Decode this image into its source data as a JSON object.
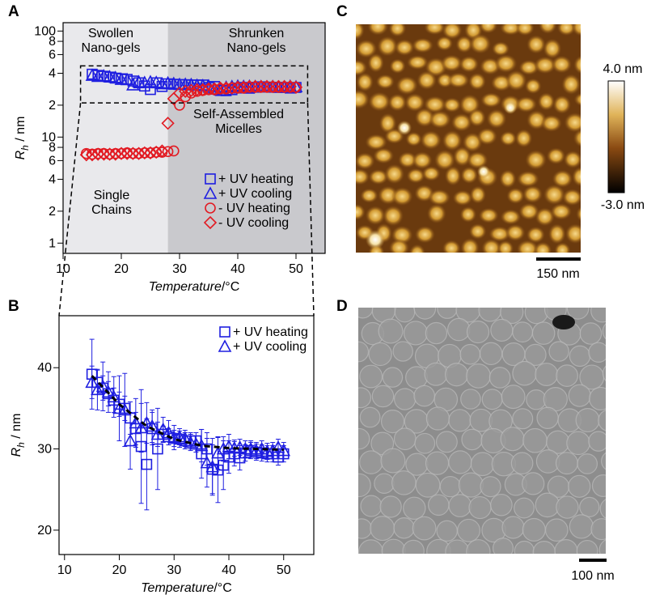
{
  "chart_data": [
    {
      "type": "scatter",
      "panel": "A",
      "log_y": true,
      "xlabel": {
        "italic": "Temperature",
        "rest": "/°C"
      },
      "ylabel": {
        "main": "R",
        "sub": "h",
        "rest": " / nm"
      },
      "xlim": [
        10,
        55
      ],
      "xticks": [
        10,
        20,
        30,
        40,
        50
      ],
      "ylim": [
        0.8,
        120
      ],
      "yticks": [
        1,
        2,
        4,
        6,
        8,
        10,
        {
          "value": 20,
          "label": "2"
        },
        {
          "value": 40,
          "label": "4"
        },
        {
          "value": 60,
          "label": "6"
        },
        {
          "value": 80,
          "label": "8"
        },
        100
      ],
      "shaded_regions": [
        {
          "xlim": [
            10,
            28
          ],
          "color": "#e9e9ec"
        },
        {
          "xlim": [
            28,
            55
          ],
          "color": "#c9c9cd"
        }
      ],
      "zoom_box": {
        "xlim": [
          13,
          52
        ],
        "ylim": [
          21,
          47
        ]
      },
      "annotations": [
        {
          "text": [
            "Swollen",
            "Nano-gels"
          ],
          "color": "#1f1fe0"
        },
        {
          "text": [
            "Shrunken",
            "Nano-gels"
          ],
          "color": "#1f1fe0"
        },
        {
          "text": [
            "Self-Assembled",
            "Micelles"
          ],
          "color": "#e21a22"
        },
        {
          "text": [
            "Single",
            "Chains"
          ],
          "color": "#e21a22"
        }
      ],
      "legend": "lower right",
      "series": [
        {
          "name": "+ UV heating",
          "color": "#1f1fe0",
          "marker": "square",
          "x": [
            15,
            16,
            17,
            18,
            19,
            20,
            21,
            22,
            23,
            24,
            25,
            26,
            27,
            28,
            29,
            30,
            31,
            32,
            33,
            34,
            35,
            36,
            37,
            38,
            39,
            40,
            41,
            42,
            43,
            44,
            45,
            46,
            47,
            48,
            49,
            50
          ],
          "values": [
            39.2,
            38.2,
            37.5,
            36.8,
            36,
            35.5,
            35,
            33.8,
            32.5,
            30.3,
            28.1,
            32.5,
            30,
            31.8,
            31.5,
            31.3,
            31.2,
            31,
            31,
            31,
            29.4,
            30,
            27.5,
            27.4,
            28,
            29,
            29.4,
            28.9,
            29.5,
            29.8,
            29.6,
            29.5,
            29.4,
            29.4,
            29,
            29.4
          ]
        },
        {
          "name": "+ UV cooling",
          "color": "#1f1fe0",
          "marker": "triangle",
          "x": [
            15,
            16,
            17,
            18,
            19,
            20,
            21,
            22,
            23,
            24,
            25,
            26,
            27,
            28,
            29,
            30,
            31,
            32,
            33,
            34,
            35,
            36,
            37,
            38,
            39,
            40,
            41,
            42,
            43,
            44,
            45,
            46,
            47,
            48,
            49,
            50
          ],
          "values": [
            38.2,
            37.3,
            37.7,
            37,
            36.4,
            35,
            34.8,
            31,
            33.2,
            32.6,
            33.2,
            32.8,
            31.8,
            32.4,
            32,
            31.4,
            31.5,
            31.3,
            30.8,
            30.6,
            30.4,
            28.3,
            27.8,
            29.5,
            30,
            30.3,
            30.1,
            30.2,
            30,
            30,
            29.8,
            30,
            29.7,
            29.8,
            30.2,
            29.8
          ]
        },
        {
          "name": "- UV heating",
          "color": "#e21a22",
          "marker": "circle",
          "x": [
            14,
            15,
            16,
            17,
            18,
            19,
            20,
            21,
            22,
            23,
            24,
            25,
            26,
            27,
            28,
            29,
            30,
            31,
            32,
            33,
            34,
            35,
            36,
            37,
            38,
            39,
            40,
            41,
            42,
            43,
            44,
            45,
            46,
            47,
            48,
            49,
            50
          ],
          "values": [
            7.0,
            6.9,
            7.0,
            7.0,
            6.9,
            7.0,
            7.0,
            7.1,
            7.0,
            7.0,
            7.1,
            7.1,
            7.2,
            7.2,
            7.3,
            7.4,
            20,
            24,
            26,
            27,
            27.5,
            28,
            28,
            28.5,
            28.5,
            29,
            29,
            29,
            29.5,
            29.5,
            29.5,
            29.5,
            29.5,
            29.5,
            29.5,
            29.5,
            29.5
          ]
        },
        {
          "name": "- UV cooling",
          "color": "#e21a22",
          "marker": "diamond",
          "x": [
            14,
            15,
            16,
            17,
            18,
            19,
            20,
            21,
            22,
            23,
            24,
            25,
            26,
            27,
            28,
            29,
            30,
            31,
            32,
            33,
            34,
            35,
            36,
            37,
            38,
            39,
            40,
            41,
            42,
            43,
            44,
            45,
            46,
            47,
            48,
            49,
            50
          ],
          "values": [
            6.8,
            6.8,
            6.9,
            6.9,
            6.9,
            6.9,
            7.0,
            7.0,
            7.0,
            7.0,
            7.1,
            7.1,
            7.2,
            7.4,
            13.5,
            23,
            26,
            27,
            27.5,
            28,
            28,
            28.5,
            28.5,
            29,
            29,
            29,
            29.5,
            29.5,
            30,
            30,
            30,
            30,
            30,
            30,
            30,
            30,
            29.5
          ]
        }
      ]
    },
    {
      "type": "scatter",
      "panel": "B",
      "log_y": false,
      "xlabel": {
        "italic": "Temperature",
        "rest": "/°C"
      },
      "ylabel": {
        "main": "R",
        "sub": "h",
        "rest": " / nm"
      },
      "xlim": [
        9,
        55.5
      ],
      "xticks": [
        10,
        20,
        30,
        40,
        50
      ],
      "ylim": [
        17,
        46.4
      ],
      "yticks": [
        20,
        30,
        40
      ],
      "legend": "upper right",
      "fit": {
        "color": "#000000",
        "x": [
          15,
          20,
          25,
          30,
          35,
          40,
          45,
          50
        ],
        "values": [
          39,
          35.5,
          32.8,
          31.2,
          30.4,
          30.1,
          30,
          29.9
        ]
      },
      "series": [
        {
          "name": "+ UV heating",
          "color": "#1f1fe0",
          "marker": "square",
          "x": [
            15,
            16,
            17,
            18,
            19,
            20,
            21,
            22,
            23,
            24,
            25,
            26,
            27,
            28,
            29,
            30,
            31,
            32,
            33,
            34,
            35,
            36,
            37,
            38,
            39,
            40,
            41,
            42,
            43,
            44,
            45,
            46,
            47,
            48,
            49,
            50
          ],
          "values": [
            39.2,
            38.2,
            37.5,
            36.8,
            36,
            35.5,
            35,
            33.8,
            32.5,
            30.3,
            28.1,
            32.5,
            30,
            31.8,
            31.5,
            31.3,
            31.2,
            31,
            31,
            31,
            29.4,
            30,
            27.5,
            27.4,
            28,
            29,
            29.4,
            28.9,
            29.5,
            29.8,
            29.6,
            29.5,
            29.4,
            29.4,
            29,
            29.4
          ],
          "errors": [
            4.3,
            1.5,
            1.5,
            1.5,
            1.5,
            1.5,
            1.5,
            2,
            2,
            7,
            5.6,
            2,
            5,
            1,
            1,
            1,
            1,
            1,
            1,
            1,
            3,
            2,
            3,
            4,
            3,
            2,
            1.5,
            1.5,
            1,
            1,
            1,
            1,
            1,
            1,
            1,
            1
          ]
        },
        {
          "name": "+ UV cooling",
          "color": "#1f1fe0",
          "marker": "triangle",
          "x": [
            15,
            16,
            17,
            18,
            19,
            20,
            21,
            22,
            23,
            24,
            25,
            26,
            27,
            28,
            29,
            30,
            31,
            32,
            33,
            34,
            35,
            36,
            37,
            38,
            39,
            40,
            41,
            42,
            43,
            44,
            45,
            46,
            47,
            48,
            49,
            50
          ],
          "values": [
            38.2,
            37.3,
            37.7,
            37,
            36.4,
            35,
            34.8,
            31,
            33.2,
            32.6,
            33.2,
            32.8,
            31.8,
            32.4,
            32,
            31.4,
            31.5,
            31.3,
            30.8,
            30.6,
            30.4,
            28.3,
            27.8,
            29.5,
            30,
            30.3,
            30.1,
            30.2,
            30,
            30,
            29.8,
            30,
            29.7,
            29.8,
            30.2,
            29.8
          ],
          "errors": [
            2,
            2.5,
            3,
            2.5,
            2.5,
            4,
            4.5,
            3.5,
            3,
            3,
            2.5,
            2,
            1.5,
            1.5,
            1.5,
            1.5,
            1,
            1,
            1,
            1,
            2,
            3,
            3.5,
            2,
            1.5,
            1.5,
            1,
            1,
            1,
            1,
            1,
            1,
            1,
            1,
            1,
            1
          ]
        }
      ]
    }
  ],
  "images": [
    {
      "panel": "C",
      "colorbar_labels": [
        "4.0 nm",
        "-3.0 nm"
      ],
      "scale_bar": "150 nm"
    },
    {
      "panel": "D",
      "scale_bar": "100 nm"
    }
  ]
}
